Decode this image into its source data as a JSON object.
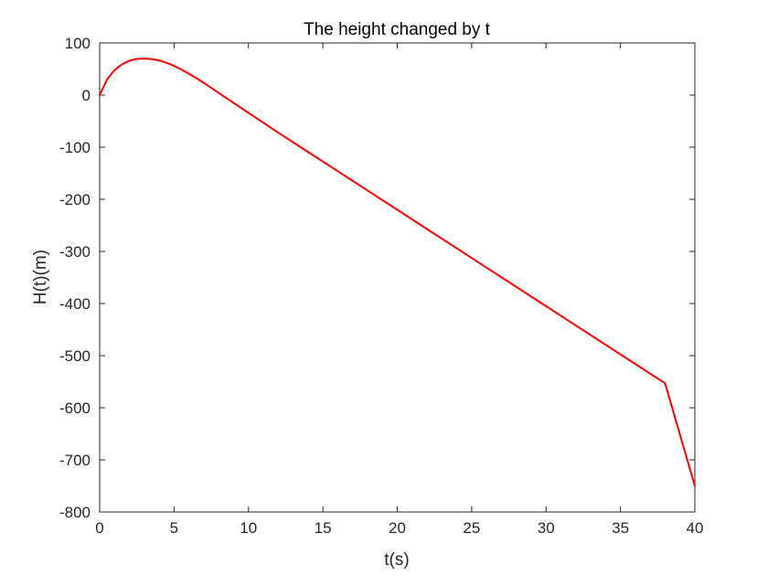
{
  "chart_data": {
    "type": "line",
    "title": "The height changed by t",
    "xlabel": "t(s)",
    "ylabel": "H(t)(m)",
    "xlim": [
      0,
      40
    ],
    "ylim": [
      -800,
      100
    ],
    "xticks": [
      0,
      5,
      10,
      15,
      20,
      25,
      30,
      35,
      40
    ],
    "yticks": [
      -800,
      -700,
      -600,
      -500,
      -400,
      -300,
      -200,
      -100,
      0,
      100
    ],
    "xtick_labels": [
      "0",
      "5",
      "10",
      "15",
      "20",
      "25",
      "30",
      "35",
      "40"
    ],
    "ytick_labels": [
      "-800",
      "-700",
      "-600",
      "-500",
      "-400",
      "-300",
      "-200",
      "-100",
      "0",
      "100"
    ],
    "grid": false,
    "series": [
      {
        "color": "#ff0000",
        "x": [
          0,
          0.5,
          1,
          1.5,
          2,
          2.5,
          3,
          3.5,
          4,
          4.5,
          5,
          5.5,
          6,
          6.5,
          7,
          7.5,
          8,
          9,
          10,
          12,
          14,
          16,
          18,
          20,
          22,
          24,
          26,
          28,
          30,
          32,
          34,
          36,
          38,
          40
        ],
        "y": [
          0,
          30,
          48,
          59,
          66,
          69.5,
          70,
          69,
          66.5,
          62,
          56,
          49,
          41,
          32.5,
          23.5,
          14,
          4,
          -15,
          -34,
          -72,
          -109,
          -146,
          -183,
          -220,
          -257,
          -294,
          -331,
          -368,
          -405,
          -442,
          -479,
          -516,
          -553,
          -750
        ]
      }
    ]
  }
}
